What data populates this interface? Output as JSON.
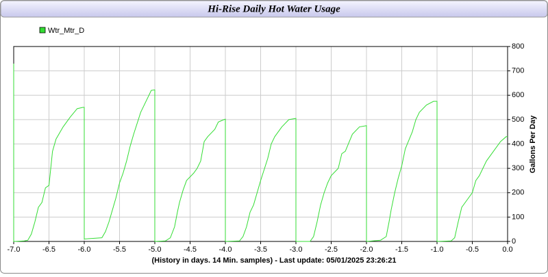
{
  "chart_data": {
    "type": "line",
    "title": "Hi-Rise Daily Hot Water Usage",
    "x_label": "(History in days. 14 Min. samples) - Last update: 05/01/2025 23:26:21",
    "y_label": "Gallons Per Day",
    "x": [
      -7,
      -7,
      -6.98,
      -6.85,
      -6.8,
      -6.75,
      -6.7,
      -6.65,
      -6.6,
      -6.55,
      -6.5,
      -6.45,
      -6.4,
      -6.3,
      -6.2,
      -6.1,
      -6.02,
      -6,
      -6,
      -5.75,
      -5.7,
      -5.65,
      -5.6,
      -5.55,
      -5.5,
      -5.45,
      -5.4,
      -5.35,
      -5.3,
      -5.2,
      -5.1,
      -5.05,
      -5,
      -5,
      -4.85,
      -4.78,
      -4.72,
      -4.68,
      -4.65,
      -4.6,
      -4.55,
      -4.45,
      -4.4,
      -4.35,
      -4.3,
      -4.25,
      -4.15,
      -4.1,
      -4.02,
      -4,
      -4,
      -3.8,
      -3.75,
      -3.7,
      -3.65,
      -3.6,
      -3.55,
      -3.5,
      -3.4,
      -3.35,
      -3.3,
      -3.2,
      -3.1,
      -3,
      -3,
      -2.8,
      -2.75,
      -2.7,
      -2.65,
      -2.6,
      -2.55,
      -2.5,
      -2.4,
      -2.35,
      -2.3,
      -2.2,
      -2.1,
      -2,
      -2,
      -1.8,
      -1.72,
      -1.68,
      -1.65,
      -1.6,
      -1.55,
      -1.5,
      -1.45,
      -1.35,
      -1.3,
      -1.25,
      -1.15,
      -1.05,
      -1,
      -1,
      -0.8,
      -0.75,
      -0.7,
      -0.65,
      -0.6,
      -0.5,
      -0.45,
      -0.4,
      -0.35,
      -0.3,
      -0.2,
      -0.1,
      -0.02,
      0
    ],
    "series": [
      {
        "name": "Wtr_Mtr_D",
        "color": "#33dd33",
        "axis": "y2",
        "values": [
          730,
          0,
          0,
          2,
          5,
          30,
          80,
          140,
          160,
          220,
          230,
          370,
          420,
          470,
          510,
          545,
          550,
          550,
          10,
          15,
          40,
          80,
          130,
          180,
          240,
          280,
          330,
          390,
          440,
          530,
          590,
          620,
          622,
          0,
          2,
          15,
          60,
          120,
          160,
          210,
          250,
          280,
          300,
          330,
          410,
          430,
          460,
          490,
          500,
          502,
          0,
          2,
          20,
          60,
          120,
          150,
          200,
          250,
          340,
          400,
          430,
          470,
          500,
          505,
          0,
          0,
          20,
          80,
          150,
          200,
          240,
          270,
          300,
          360,
          370,
          440,
          470,
          475,
          0,
          5,
          20,
          80,
          130,
          200,
          260,
          310,
          380,
          450,
          500,
          530,
          560,
          575,
          575,
          0,
          2,
          15,
          80,
          140,
          160,
          200,
          250,
          270,
          300,
          330,
          370,
          410,
          430,
          430
        ]
      }
    ],
    "xlim": [
      -7,
      0
    ],
    "xticks": [
      {
        "value": -7,
        "label": "-7.0"
      },
      {
        "value": -6.5,
        "label": "-6.5"
      },
      {
        "value": -6,
        "label": "-6.0"
      },
      {
        "value": -5.5,
        "label": "-5.5"
      },
      {
        "value": -5,
        "label": "-5.0"
      },
      {
        "value": -4.5,
        "label": "-4.5"
      },
      {
        "value": -4,
        "label": "-4.0"
      },
      {
        "value": -3.5,
        "label": "-3.5"
      },
      {
        "value": -3,
        "label": "-3.0"
      },
      {
        "value": -2.5,
        "label": "-2.5"
      },
      {
        "value": -2,
        "label": "-2.0"
      },
      {
        "value": -1.5,
        "label": "-1.5"
      },
      {
        "value": -1,
        "label": "-1.0"
      },
      {
        "value": -0.5,
        "label": "-0.5"
      },
      {
        "value": 0,
        "label": "0.0"
      }
    ],
    "y2lim": [
      0,
      800
    ],
    "y2ticks": [
      0,
      100,
      200,
      300,
      400,
      500,
      600,
      700,
      800
    ],
    "grid": true
  }
}
